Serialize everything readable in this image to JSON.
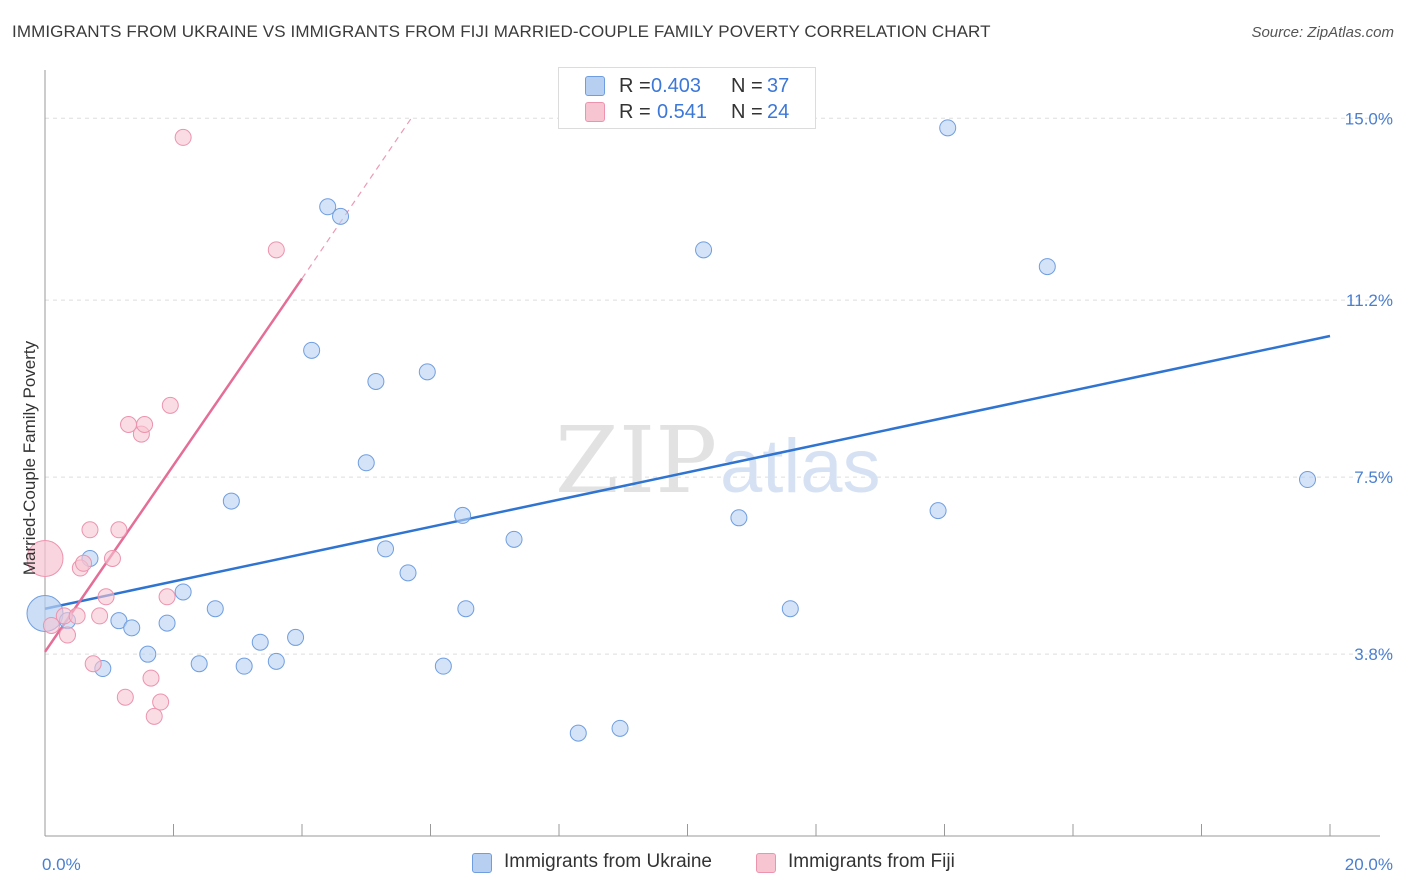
{
  "title": "IMMIGRANTS FROM UKRAINE VS IMMIGRANTS FROM FIJI MARRIED-COUPLE FAMILY POVERTY CORRELATION CHART",
  "source": "Source: ZipAtlas.com",
  "watermark": {
    "zip": "ZIP",
    "atlas": "atlas"
  },
  "colors": {
    "ukraine_fill": "#b7d0f2",
    "ukraine_stroke": "#6f9ee0",
    "ukraine_line": "#2f74d0",
    "fiji_fill": "#f7c4d2",
    "fiji_stroke": "#ec93ae",
    "fiji_line": "#e46e97",
    "tick_text": "#4a7fd0",
    "grid": "#dddddd"
  },
  "legend_top": {
    "rows": [
      {
        "series": "ukraine",
        "r_label": "R =",
        "r_value": "0.403",
        "n_label": "N =",
        "n_value": "37"
      },
      {
        "series": "fiji",
        "r_label": "R =",
        "r_value": "0.541",
        "n_label": "N =",
        "n_value": "24"
      }
    ]
  },
  "chart_data": {
    "type": "scatter",
    "title": "IMMIGRANTS FROM UKRAINE VS IMMIGRANTS FROM FIJI MARRIED-COUPLE FAMILY POVERTY CORRELATION CHART",
    "xlabel": "",
    "ylabel": "Married-Couple Family Poverty",
    "xlim": [
      0,
      20
    ],
    "ylim": [
      0,
      15.8
    ],
    "x_ticks": [
      {
        "value": 0,
        "label": "0.0%"
      },
      {
        "value": 20,
        "label": "20.0%"
      }
    ],
    "y_ticks": [
      {
        "value": 3.8,
        "label": "3.8%"
      },
      {
        "value": 7.5,
        "label": "7.5%"
      },
      {
        "value": 11.2,
        "label": "11.2%"
      },
      {
        "value": 15.0,
        "label": "15.0%"
      }
    ],
    "series": [
      {
        "name": "Immigrants from Ukraine",
        "key": "ukraine",
        "points": [
          {
            "x": 0.0,
            "y": 4.65,
            "big": true
          },
          {
            "x": 0.35,
            "y": 4.5
          },
          {
            "x": 0.7,
            "y": 5.8
          },
          {
            "x": 0.9,
            "y": 3.5
          },
          {
            "x": 1.15,
            "y": 4.5
          },
          {
            "x": 1.35,
            "y": 4.35
          },
          {
            "x": 1.6,
            "y": 3.8
          },
          {
            "x": 1.9,
            "y": 4.45
          },
          {
            "x": 2.15,
            "y": 5.1
          },
          {
            "x": 2.4,
            "y": 3.6
          },
          {
            "x": 2.65,
            "y": 4.75
          },
          {
            "x": 2.9,
            "y": 7.0
          },
          {
            "x": 3.1,
            "y": 3.55
          },
          {
            "x": 3.35,
            "y": 4.05
          },
          {
            "x": 3.6,
            "y": 3.65
          },
          {
            "x": 3.9,
            "y": 4.15
          },
          {
            "x": 4.15,
            "y": 10.15
          },
          {
            "x": 4.4,
            "y": 13.15
          },
          {
            "x": 4.6,
            "y": 12.95
          },
          {
            "x": 5.0,
            "y": 7.8
          },
          {
            "x": 5.15,
            "y": 9.5
          },
          {
            "x": 5.3,
            "y": 6.0
          },
          {
            "x": 5.65,
            "y": 5.5
          },
          {
            "x": 5.95,
            "y": 9.7
          },
          {
            "x": 6.2,
            "y": 3.55
          },
          {
            "x": 6.5,
            "y": 6.7
          },
          {
            "x": 6.55,
            "y": 4.75
          },
          {
            "x": 7.3,
            "y": 6.2
          },
          {
            "x": 8.3,
            "y": 2.15
          },
          {
            "x": 8.95,
            "y": 2.25
          },
          {
            "x": 10.25,
            "y": 12.25
          },
          {
            "x": 10.8,
            "y": 6.65
          },
          {
            "x": 11.6,
            "y": 4.75
          },
          {
            "x": 13.9,
            "y": 6.8
          },
          {
            "x": 14.05,
            "y": 14.8
          },
          {
            "x": 15.6,
            "y": 11.9
          },
          {
            "x": 19.65,
            "y": 7.45
          }
        ],
        "trend": {
          "x0": 0,
          "y0": 4.75,
          "x1": 20,
          "y1": 10.45
        }
      },
      {
        "name": "Immigrants from Fiji",
        "key": "fiji",
        "points": [
          {
            "x": 0.0,
            "y": 5.8,
            "big": true
          },
          {
            "x": 0.1,
            "y": 4.4
          },
          {
            "x": 0.3,
            "y": 4.6
          },
          {
            "x": 0.35,
            "y": 4.2
          },
          {
            "x": 0.5,
            "y": 4.6
          },
          {
            "x": 0.55,
            "y": 5.6
          },
          {
            "x": 0.6,
            "y": 5.7
          },
          {
            "x": 0.7,
            "y": 6.4
          },
          {
            "x": 0.75,
            "y": 3.6
          },
          {
            "x": 0.85,
            "y": 4.6
          },
          {
            "x": 0.95,
            "y": 5.0
          },
          {
            "x": 1.05,
            "y": 5.8
          },
          {
            "x": 1.15,
            "y": 6.4
          },
          {
            "x": 1.25,
            "y": 2.9
          },
          {
            "x": 1.3,
            "y": 8.6
          },
          {
            "x": 1.5,
            "y": 8.4
          },
          {
            "x": 1.55,
            "y": 8.6
          },
          {
            "x": 1.65,
            "y": 3.3
          },
          {
            "x": 1.7,
            "y": 2.5
          },
          {
            "x": 1.8,
            "y": 2.8
          },
          {
            "x": 1.9,
            "y": 5.0
          },
          {
            "x": 1.95,
            "y": 9.0
          },
          {
            "x": 2.15,
            "y": 14.6
          },
          {
            "x": 3.6,
            "y": 12.25
          }
        ],
        "trend": {
          "x0": 0,
          "y0": 3.85,
          "x1": 4.0,
          "y1": 11.65,
          "dash_to_x": 5.7,
          "dash_to_y": 15.0
        }
      }
    ]
  }
}
